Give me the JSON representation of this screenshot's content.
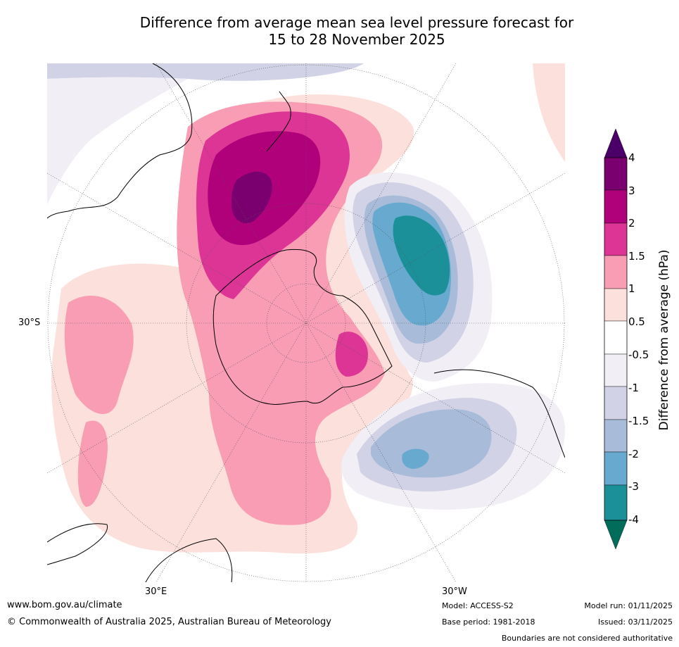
{
  "title_line1": "Difference from average mean sea level pressure forecast for",
  "title_line2": "15 to 28 November 2025",
  "graticule": {
    "lat_label": "30°S",
    "lon_label_east": "30°E",
    "lon_label_west": "30°W"
  },
  "legend": {
    "title": "Difference from average (hPa)",
    "tick_labels": [
      "4",
      "3",
      "2",
      "1.5",
      "1",
      "0.5",
      "-0.5",
      "-1",
      "-1.5",
      "-2",
      "-3",
      "-4"
    ],
    "colors": {
      "above_4": "#4a0068",
      "3_to_4": "#7a0070",
      "2_to_3": "#b0007a",
      "1.5_to_2": "#dc3596",
      "1_to_1.5": "#f89db4",
      "0.5_to_1": "#fce0dc",
      "-0.5_to_0.5": "#ffffff",
      "-1_to_-0.5": "#f1eef5",
      "-1.5_to_-1": "#d1d2e6",
      "-2_to_-1.5": "#a8bbd9",
      "-3_to_-2": "#67a9cf",
      "-4_to_-3": "#1c9099",
      "below_-4": "#016c59"
    }
  },
  "footer": {
    "website": "www.bom.gov.au/climate",
    "copyright": "© Commonwealth of Australia 2025, Australian Bureau of Meteorology",
    "model": "Model: ACCESS-S2",
    "base_period": "Base period: 1981-2018",
    "model_run": "Model run: 01/11/2025",
    "issued": "Issued: 03/11/2025",
    "disclaimer": "Boundaries are not considered authoritative"
  }
}
